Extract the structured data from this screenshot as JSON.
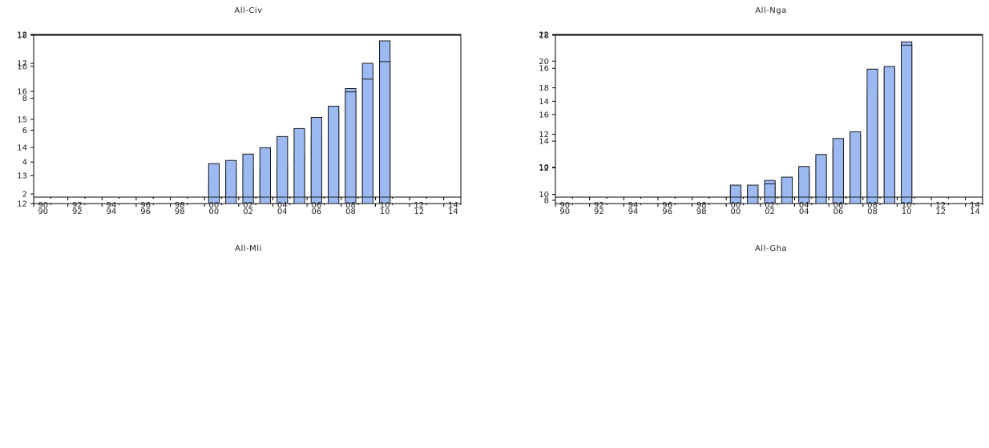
{
  "colors": {
    "bar_fill": "#9db9f2",
    "bar_stroke": "#1a1a1a",
    "axis": "#000000"
  },
  "chart_data": [
    {
      "type": "bar",
      "title": "All-Civ",
      "x_tick_labels": [
        "90",
        "92",
        "94",
        "96",
        "98",
        "00",
        "02",
        "04",
        "06",
        "08",
        "10",
        "12",
        "14"
      ],
      "ylim": [
        12,
        18
      ],
      "y_ticks": [
        12,
        13,
        14,
        15,
        16,
        17,
        18
      ],
      "grid": false,
      "categories": [
        "2000",
        "2001",
        "2002",
        "2003",
        "2004",
        "2005",
        "2006",
        "2007",
        "2008",
        "2009",
        "2010"
      ],
      "values": [
        12.8,
        13.05,
        13.2,
        13.2,
        13.45,
        13.75,
        14.35,
        15.3,
        16.1,
        17.0,
        17.8
      ]
    },
    {
      "type": "bar",
      "title": "All-Nga",
      "x_tick_labels": [
        "90",
        "92",
        "94",
        "96",
        "98",
        "00",
        "02",
        "04",
        "06",
        "08",
        "10",
        "12",
        "14"
      ],
      "ylim": [
        7.8,
        18
      ],
      "y_ticks": [
        8,
        10,
        12,
        14,
        16,
        18
      ],
      "grid": false,
      "categories": [
        "2000",
        "2001",
        "2002",
        "2003",
        "2004",
        "2005",
        "2006",
        "2007",
        "2008",
        "2009",
        "2010"
      ],
      "values": [
        8.6,
        8.7,
        9.2,
        9.1,
        9.7,
        10.5,
        11.2,
        11.9,
        14.7,
        15.9,
        17.6
      ]
    },
    {
      "type": "bar",
      "title": "All-Mli",
      "x_tick_labels": [
        "90",
        "92",
        "94",
        "96",
        "98",
        "00",
        "02",
        "04",
        "06",
        "08",
        "10",
        "12",
        "14"
      ],
      "ylim": [
        1.8,
        12
      ],
      "y_ticks": [
        2,
        4,
        6,
        8,
        10,
        12
      ],
      "grid": false,
      "categories": [
        "2000",
        "2001",
        "2002",
        "2003",
        "2004",
        "2005",
        "2006",
        "2007",
        "2008",
        "2009",
        "2010"
      ],
      "values": [
        3.9,
        4.1,
        4.5,
        4.9,
        5.6,
        6.1,
        6.8,
        7.5,
        8.4,
        9.2,
        10.3
      ]
    },
    {
      "type": "bar",
      "title": "All-Gha",
      "x_tick_labels": [
        "90",
        "92",
        "94",
        "96",
        "98",
        "00",
        "02",
        "04",
        "06",
        "08",
        "10",
        "12",
        "14"
      ],
      "ylim": [
        9.8,
        22
      ],
      "y_ticks": [
        10,
        12,
        14,
        16,
        18,
        20,
        22
      ],
      "grid": false,
      "categories": [
        "2000",
        "2001",
        "2002",
        "2003",
        "2004",
        "2005",
        "2006",
        "2007",
        "2008",
        "2009",
        "2010"
      ],
      "values": [
        10.7,
        10.7,
        10.8,
        11.3,
        12.1,
        13.0,
        14.2,
        14.7,
        19.4,
        19.6,
        21.2
      ]
    }
  ]
}
